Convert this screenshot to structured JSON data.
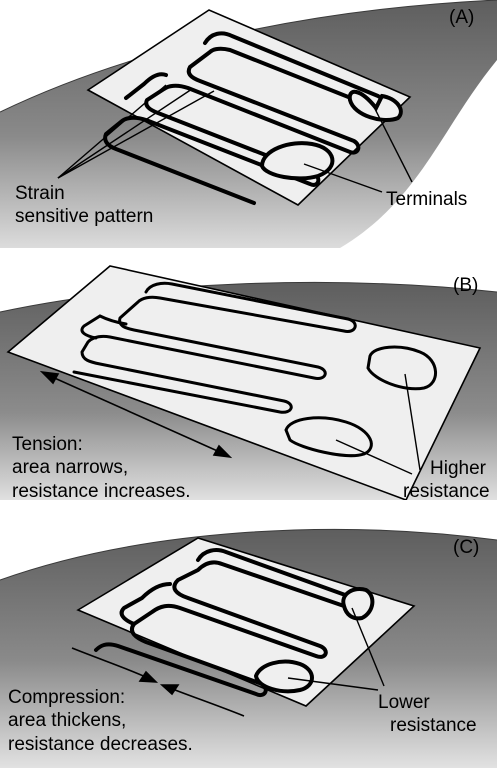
{
  "panels": [
    {
      "id": "A",
      "tag": "(A)",
      "labels": {
        "left": [
          "Strain",
          "sensitive pattern"
        ],
        "right": [
          "Terminals"
        ]
      }
    },
    {
      "id": "B",
      "tag": "(B)",
      "labels": {
        "left": [
          "Tension:",
          "area narrows,",
          "resistance increases."
        ],
        "right": [
          "Higher",
          "resistance"
        ]
      }
    },
    {
      "id": "C",
      "tag": "(C)",
      "labels": {
        "left": [
          "Compression:",
          "area thickens,",
          "resistance decreases."
        ],
        "right": [
          "Lower",
          "resistance"
        ]
      }
    }
  ],
  "colors": {
    "background": "#ffffff",
    "substrate_dark": "#6b6b6b",
    "substrate_light": "#d8d8d8",
    "foil_backing": "#efefef",
    "ink": "#000000"
  }
}
